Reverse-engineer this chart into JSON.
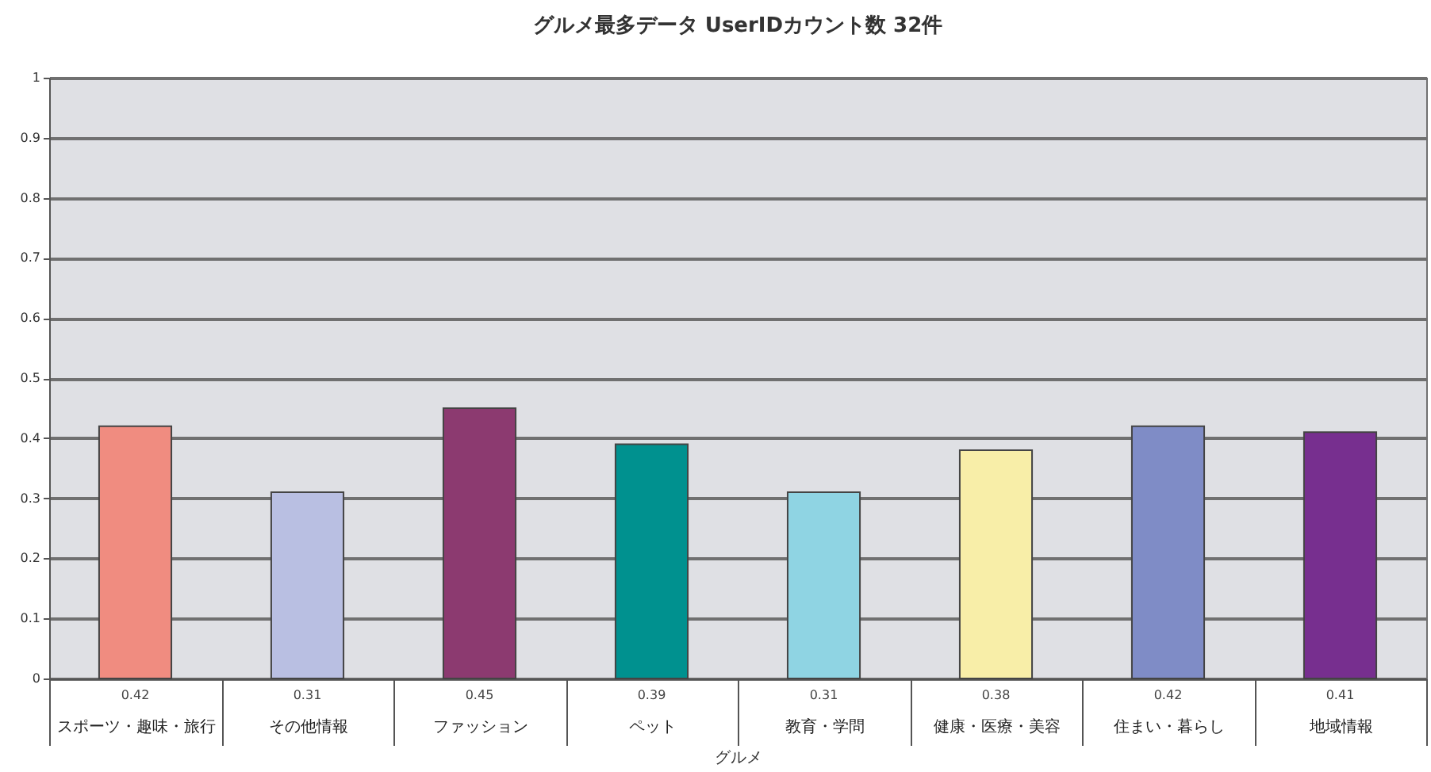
{
  "chart_data": {
    "type": "bar",
    "title": "グルメ最多データ UserIDカウント数 32件",
    "xlabel": "グルメ",
    "categories": [
      "スポーツ・趣味・旅行",
      "その他情報",
      "ファッション",
      "ペット",
      "教育・学問",
      "健康・医療・美容",
      "住まい・暮らし",
      "地域情報"
    ],
    "values": [
      0.42,
      0.31,
      0.45,
      0.39,
      0.31,
      0.38,
      0.42,
      0.41
    ],
    "colors": [
      "#f08c80",
      "#b9bfe2",
      "#8c3a70",
      "#00918f",
      "#8fd4e3",
      "#f8eea8",
      "#7f8cc6",
      "#772f8f"
    ],
    "ylim": [
      0,
      1
    ],
    "yticks": [
      0,
      0.1,
      0.2,
      0.3,
      0.4,
      0.5,
      0.6,
      0.7,
      0.8,
      0.9,
      1
    ],
    "grid": "y",
    "data_labels": true
  }
}
